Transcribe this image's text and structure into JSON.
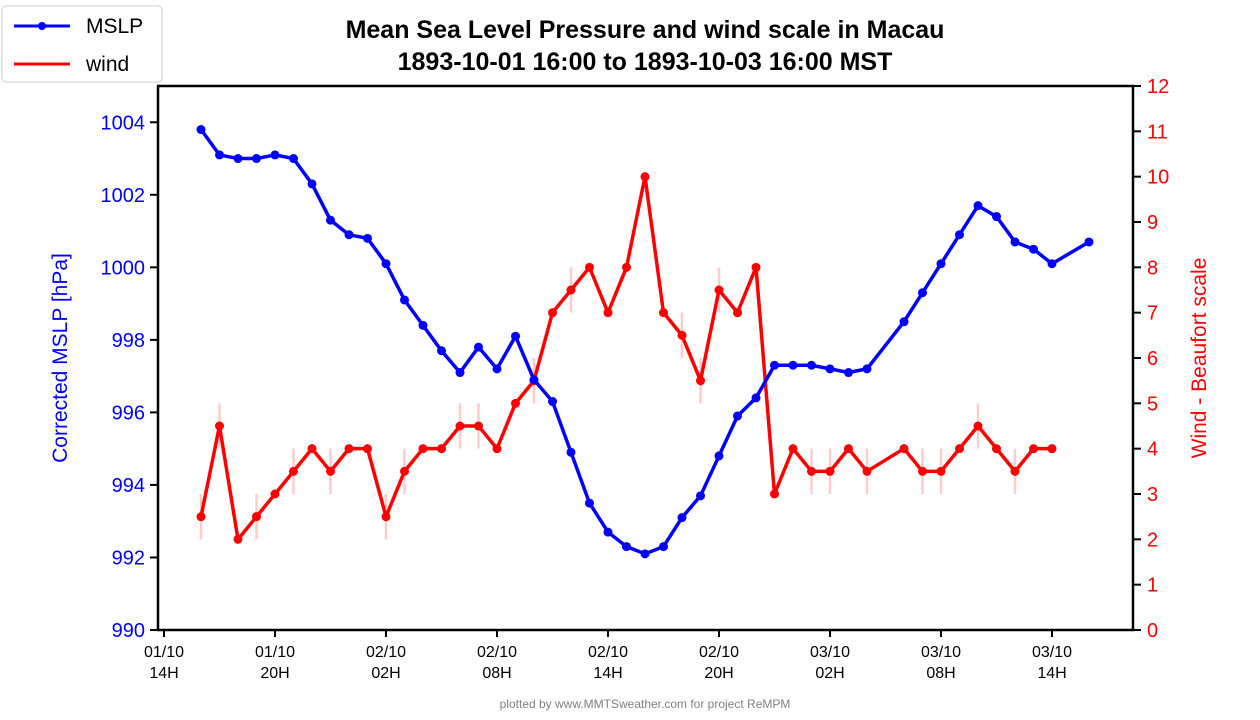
{
  "chart_data": {
    "type": "line",
    "title": "Mean Sea Level Pressure and wind scale in Macau",
    "subtitle": "1893-10-01 16:00 to 1893-10-03 16:00 MST",
    "ylabel": "Corrected MSLP [hPa]",
    "y2label": "Wind - Beaufort scale",
    "ylim": [
      990,
      1005
    ],
    "y2lim": [
      0,
      12
    ],
    "yticks": [
      "990",
      "992",
      "994",
      "996",
      "998",
      "1000",
      "1002",
      "1004"
    ],
    "y2ticks": [
      "0",
      "1",
      "2",
      "3",
      "4",
      "5",
      "6",
      "7",
      "8",
      "9",
      "10",
      "11",
      "12"
    ],
    "x_unit": "hours since 01/10 14H",
    "xticks": [
      {
        "h": 0,
        "l1": "01/10",
        "l2": "14H"
      },
      {
        "h": 6,
        "l1": "01/10",
        "l2": "20H"
      },
      {
        "h": 12,
        "l1": "02/10",
        "l2": "02H"
      },
      {
        "h": 18,
        "l1": "02/10",
        "l2": "08H"
      },
      {
        "h": 24,
        "l1": "02/10",
        "l2": "14H"
      },
      {
        "h": 30,
        "l1": "02/10",
        "l2": "20H"
      },
      {
        "h": 36,
        "l1": "03/10",
        "l2": "02H"
      },
      {
        "h": 42,
        "l1": "03/10",
        "l2": "08H"
      },
      {
        "h": 48,
        "l1": "03/10",
        "l2": "14H"
      }
    ],
    "legend": {
      "placement": "top-left",
      "entries": [
        "MSLP",
        "wind"
      ]
    },
    "series": [
      {
        "name": "MSLP",
        "color": "#0000ff",
        "x": [
          2,
          3,
          4,
          5,
          6,
          7,
          8,
          9,
          10,
          11,
          12,
          13,
          14,
          15,
          16,
          17,
          18,
          19,
          20,
          21,
          22,
          23,
          24,
          25,
          26,
          27,
          28,
          29,
          30,
          31,
          32,
          33,
          34,
          35,
          36,
          37,
          38,
          40,
          41,
          42,
          43,
          44,
          45,
          46,
          47,
          48,
          50
        ],
        "values": [
          1003.8,
          1003.1,
          1003.0,
          1003.0,
          1003.1,
          1003.0,
          1002.3,
          1001.3,
          1000.9,
          1000.8,
          1000.1,
          999.1,
          998.4,
          997.7,
          997.1,
          997.8,
          997.2,
          998.1,
          996.9,
          996.3,
          994.9,
          993.5,
          992.7,
          992.3,
          992.1,
          992.3,
          993.1,
          993.7,
          994.8,
          995.9,
          996.4,
          997.3,
          997.3,
          997.3,
          997.2,
          997.1,
          997.2,
          998.5,
          999.3,
          1000.1,
          1000.9,
          1001.7,
          1001.4,
          1000.7,
          1000.5,
          1000.1,
          1000.7
        ]
      },
      {
        "name": "wind",
        "color": "#ff0000",
        "axis": "right",
        "x": [
          2,
          3,
          4,
          5,
          6,
          7,
          8,
          9,
          10,
          11,
          12,
          13,
          14,
          15,
          16,
          17,
          18,
          19,
          20,
          21,
          22,
          23,
          24,
          25,
          26,
          27,
          28,
          29,
          30,
          31,
          32,
          33,
          34,
          35,
          36,
          37,
          38,
          40,
          41,
          42,
          43,
          44,
          45,
          46,
          47,
          48
        ],
        "values": [
          2.5,
          4.5,
          2,
          2.5,
          3,
          3.5,
          4,
          3.5,
          4,
          4,
          2.5,
          3.5,
          4,
          4,
          4.5,
          4.5,
          4,
          5,
          5.5,
          7,
          7.5,
          8,
          7,
          8,
          10,
          7,
          6.5,
          5.5,
          7.5,
          7,
          8,
          3,
          4,
          3.5,
          3.5,
          4,
          3.5,
          4,
          3.5,
          3.5,
          4,
          4.5,
          4,
          3.5,
          4,
          4
        ],
        "error": 0.5
      }
    ],
    "footer": "plotted by www.MMTSweather.com for project ReMPM"
  }
}
